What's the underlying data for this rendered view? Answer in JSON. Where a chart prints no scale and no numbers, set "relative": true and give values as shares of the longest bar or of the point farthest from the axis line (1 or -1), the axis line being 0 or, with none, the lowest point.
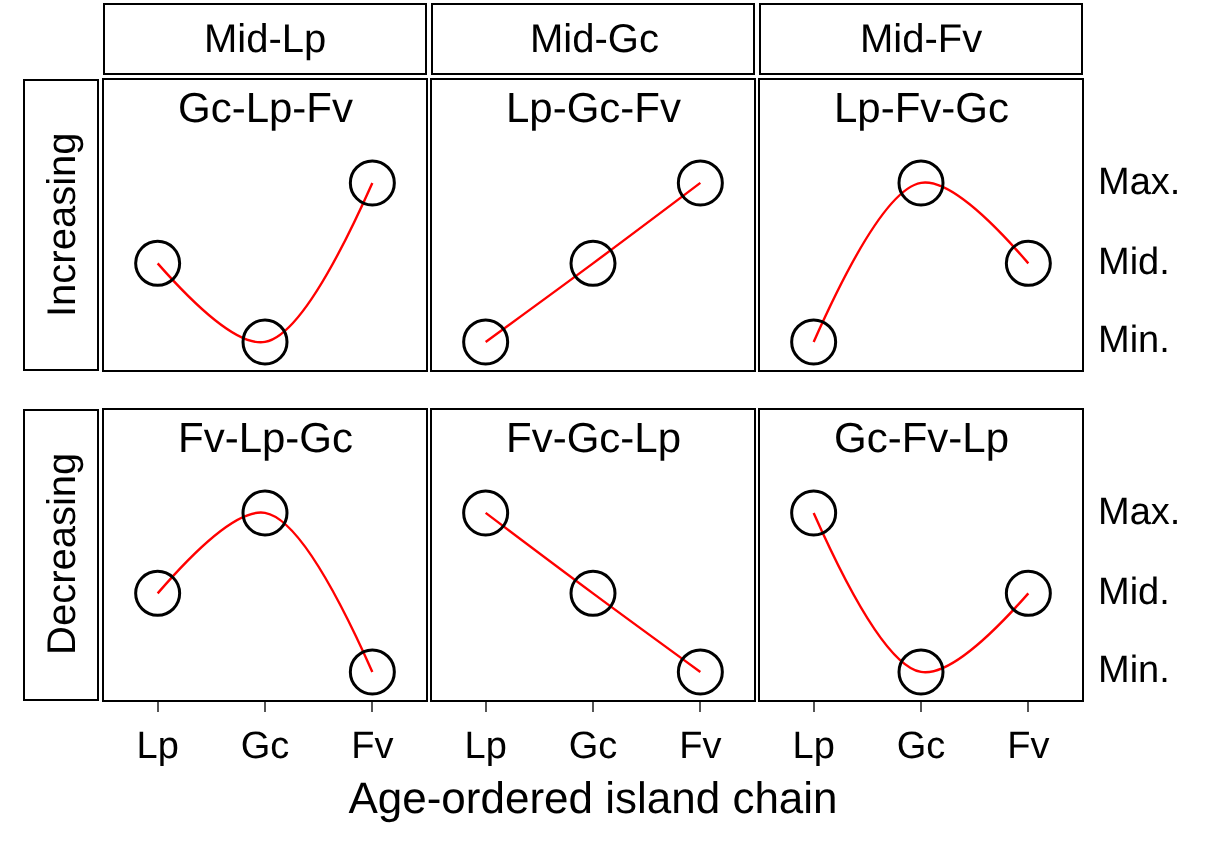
{
  "chart_data": [
    {
      "type": "line",
      "relative": true,
      "title": "Gc-Lp-Fv",
      "subtitle": "Mid-Lp",
      "ylabel": "Increasing",
      "categories": [
        null,
        null,
        null
      ],
      "series": [
        {
          "color": "#ff0000",
          "values": [
            0.57,
            0.15,
            1
          ]
        }
      ],
      "marker": "circle",
      "grid": false,
      "tick_labels": false
    },
    {
      "type": "line",
      "relative": true,
      "title": "Lp-Gc-Fv",
      "subtitle": "Mid-Gc",
      "categories": [
        null,
        null,
        null
      ],
      "series": [
        {
          "color": "#ff0000",
          "values": [
            0.15,
            0.57,
            1
          ]
        }
      ],
      "marker": "circle",
      "grid": false,
      "tick_labels": false
    },
    {
      "type": "line",
      "relative": true,
      "title": "Lp-Fv-Gc",
      "subtitle": "Mid-Fv",
      "categories": [
        null,
        null,
        null
      ],
      "series": [
        {
          "color": "#ff0000",
          "values": [
            0.15,
            1,
            0.57
          ]
        }
      ],
      "marker": "circle",
      "grid": false,
      "tick_labels": false,
      "annotations": [
        "Max.",
        "Mid.",
        "Min."
      ]
    },
    {
      "type": "line",
      "relative": true,
      "title": "Fv-Lp-Gc",
      "ylabel": "Decreasing",
      "categories": [
        "Lp",
        "Gc",
        "Fv"
      ],
      "series": [
        {
          "color": "#ff0000",
          "values": [
            0.57,
            1,
            0.15
          ]
        }
      ],
      "marker": "circle",
      "grid": false,
      "tick_labels": "x"
    },
    {
      "type": "line",
      "relative": true,
      "title": "Fv-Gc-Lp",
      "xlabel": "Age-ordered island chain",
      "categories": [
        "Lp",
        "Gc",
        "Fv"
      ],
      "series": [
        {
          "color": "#ff0000",
          "values": [
            1,
            0.57,
            0.15
          ]
        }
      ],
      "marker": "circle",
      "grid": false,
      "tick_labels": "x"
    },
    {
      "type": "line",
      "relative": true,
      "title": "Gc-Fv-Lp",
      "categories": [
        "Lp",
        "Gc",
        "Fv"
      ],
      "series": [
        {
          "color": "#ff0000",
          "values": [
            1,
            0.15,
            0.57
          ]
        }
      ],
      "marker": "circle",
      "grid": false,
      "tick_labels": "x",
      "annotations": [
        "Max.",
        "Mid.",
        "Min."
      ]
    }
  ]
}
